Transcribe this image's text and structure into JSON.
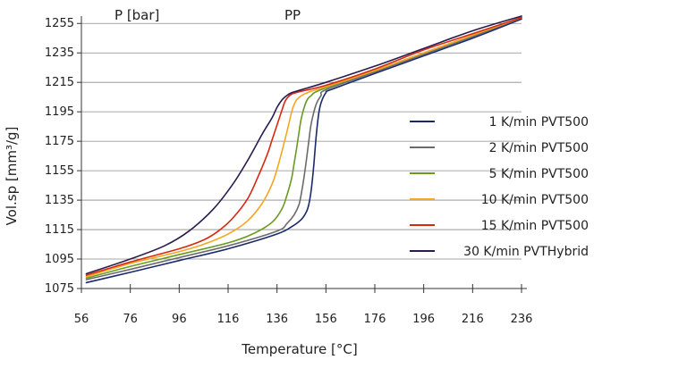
{
  "chart_data": {
    "type": "line",
    "title": "",
    "xlabel": "Temperature [°C]",
    "ylabel": "Vol.sp [mm³/g]",
    "xlim": [
      56,
      236
    ],
    "ylim": [
      1075,
      1260
    ],
    "xticks": [
      56,
      76,
      96,
      116,
      136,
      156,
      176,
      196,
      216,
      236
    ],
    "yticks": [
      1075,
      1095,
      1115,
      1135,
      1155,
      1175,
      1195,
      1215,
      1235,
      1255
    ],
    "grid": "horizontal",
    "legend_position": "right",
    "annotations": [
      "P [bar]",
      "PP"
    ],
    "series": [
      {
        "name": "1 K/min PVT500",
        "color": "#1a2a6c",
        "x": [
          58,
          76,
          96,
          116,
          136,
          142,
          146,
          148,
          149,
          150,
          151,
          152,
          153,
          154,
          156,
          158,
          176,
          196,
          216,
          236
        ],
        "y": [
          1079,
          1086,
          1094,
          1102,
          1112,
          1117,
          1122,
          1127,
          1132,
          1142,
          1158,
          1178,
          1193,
          1201,
          1208,
          1210,
          1221,
          1233,
          1245,
          1258
        ]
      },
      {
        "name": "2 K/min PVT500",
        "color": "#6b6b6b",
        "x": [
          58,
          76,
          96,
          116,
          136,
          140,
          143,
          145,
          146,
          147,
          148,
          149,
          150,
          152,
          154,
          156,
          176,
          196,
          216,
          236
        ],
        "y": [
          1081,
          1088,
          1096,
          1104,
          1114,
          1119,
          1125,
          1132,
          1140,
          1150,
          1162,
          1175,
          1187,
          1200,
          1206,
          1210,
          1222,
          1234,
          1246,
          1259
        ]
      },
      {
        "name": "5 K/min PVT500",
        "color": "#6a9a1f",
        "x": [
          58,
          76,
          96,
          116,
          126,
          134,
          138,
          140,
          142,
          143,
          144,
          145,
          146,
          148,
          150,
          154,
          176,
          196,
          216,
          236
        ],
        "y": [
          1082,
          1090,
          1098,
          1106,
          1112,
          1120,
          1129,
          1138,
          1150,
          1160,
          1170,
          1181,
          1191,
          1202,
          1206,
          1210,
          1223,
          1235,
          1247,
          1259
        ]
      },
      {
        "name": "10 K/min PVT500",
        "color": "#f5a623",
        "x": [
          58,
          76,
          96,
          106,
          116,
          124,
          130,
          134,
          136,
          138,
          140,
          141,
          142,
          143,
          144,
          146,
          150,
          156,
          176,
          196,
          216,
          236
        ],
        "y": [
          1083,
          1092,
          1100,
          1105,
          1112,
          1121,
          1133,
          1146,
          1156,
          1168,
          1181,
          1188,
          1195,
          1200,
          1203,
          1206,
          1209,
          1212,
          1223,
          1235,
          1247,
          1259
        ]
      },
      {
        "name": "15 K/min PVT500",
        "color": "#d62a10",
        "x": [
          58,
          76,
          96,
          106,
          112,
          118,
          124,
          128,
          132,
          134,
          136,
          138,
          139,
          140,
          142,
          146,
          156,
          176,
          196,
          216,
          236
        ],
        "y": [
          1084,
          1093,
          1102,
          1108,
          1114,
          1123,
          1136,
          1150,
          1166,
          1176,
          1186,
          1196,
          1201,
          1204,
          1207,
          1209,
          1213,
          1224,
          1237,
          1248,
          1259
        ]
      },
      {
        "name": "30 K/min PVTHybrid",
        "color": "#2a1a4e",
        "x": [
          58,
          76,
          90,
          100,
          110,
          118,
          124,
          130,
          134,
          136,
          138,
          140,
          142,
          146,
          156,
          176,
          196,
          216,
          236
        ],
        "y": [
          1085,
          1095,
          1104,
          1114,
          1129,
          1146,
          1162,
          1180,
          1191,
          1198,
          1203,
          1206,
          1208,
          1210,
          1215,
          1226,
          1238,
          1250,
          1260
        ]
      }
    ]
  }
}
